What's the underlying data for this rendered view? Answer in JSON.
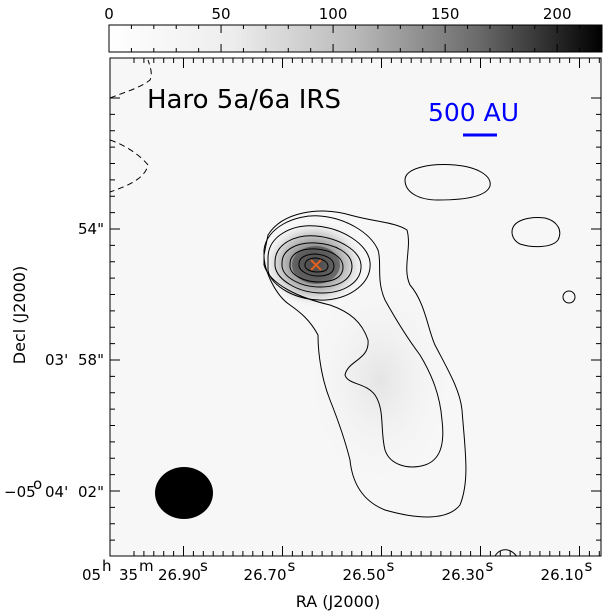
{
  "chart_data": {
    "type": "heatmap",
    "title": "Haro 5a/6a IRS",
    "colorbar": {
      "ticks": [
        "0",
        "50",
        "100",
        "150",
        "200"
      ],
      "tick_values": [
        0,
        50,
        100,
        150,
        200
      ],
      "range": [
        0,
        220
      ],
      "colormap": "white-to-black greyscale"
    },
    "xlabel": "RA (J2000)",
    "ylabel": "Decl (J2000)",
    "x_ticks": [
      {
        "value_s": 26.9,
        "label": "05h 35m 26.90s"
      },
      {
        "value_s": 26.7,
        "label": "26.70s"
      },
      {
        "value_s": 26.5,
        "label": "26.50s"
      },
      {
        "value_s": 26.3,
        "label": "26.30s"
      },
      {
        "value_s": 26.1,
        "label": "26.10s"
      }
    ],
    "y_ticks": [
      {
        "value_arcsec": 54,
        "label": "54\""
      },
      {
        "value_arcsec": 58,
        "label": "03' 58\""
      },
      {
        "value_arcsec": 62,
        "label": "-05o 04' 02\""
      }
    ],
    "peak_marker": {
      "ra_s": 26.55,
      "dec_arcsec": 55.1,
      "symbol": "x",
      "color": "#e0601e"
    },
    "scale_bar": {
      "label": "500 AU",
      "color": "#0000ff"
    },
    "beam": {
      "shape": "filled ellipse",
      "color": "#000000"
    },
    "contours": "solid positive contours around a compact peak with an extended southern lobe; dashed negative contour at the left edge"
  },
  "labels": {
    "title": "Haro 5a/6a IRS",
    "scale_bar": "500 AU",
    "xlabel": "RA (J2000)",
    "ylabel": "Decl (J2000)",
    "cbar_ticks": [
      "0",
      "50",
      "100",
      "150",
      "200"
    ],
    "x_first_h": "05",
    "x_first_m": "35",
    "x_first_s": "26.90",
    "x_rest": [
      "26.70",
      "26.50",
      "26.30",
      "26.10"
    ],
    "y_54": "54\"",
    "y_58_min": "03'",
    "y_58_sec": "58\"",
    "y_02_deg": "−05",
    "y_02_min": "04'",
    "y_02_sec": "02\""
  }
}
